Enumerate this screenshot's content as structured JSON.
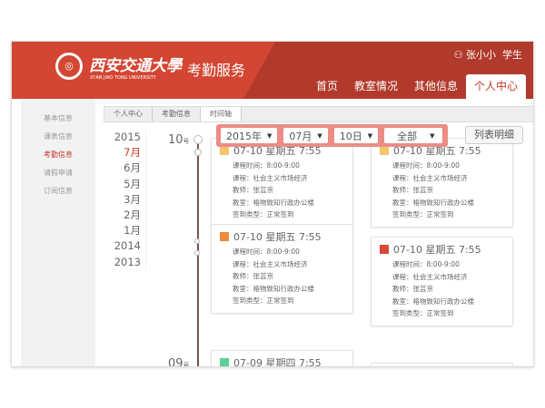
{
  "header": {
    "university_cn": "西安交通大學",
    "university_en": "XI'AN JIAO TONG UNIVERSITY",
    "service": "考勤服务",
    "user": "张小小",
    "role": "学生",
    "user_icon": "user-icon",
    "nav": [
      {
        "label": "首页"
      },
      {
        "label": "教室情况"
      },
      {
        "label": "其他信息"
      },
      {
        "label": "个人中心",
        "active": true
      }
    ]
  },
  "sidebar": {
    "items": [
      {
        "label": "基本信息"
      },
      {
        "label": "课表信息"
      },
      {
        "label": "考勤信息",
        "active": true
      },
      {
        "label": "请假申请"
      },
      {
        "label": "订阅信息"
      }
    ]
  },
  "breadcrumb": [
    "个人中心",
    "考勤信息",
    "时间轴"
  ],
  "years": [
    "2015",
    "7月",
    "6月",
    "5月",
    "3月",
    "2月",
    "1月",
    "2014",
    "2013"
  ],
  "filter": {
    "year": "2015年",
    "month": "07月",
    "day": "10日",
    "type": "全部",
    "list_button": "列表明细"
  },
  "days": [
    {
      "num": "10",
      "suffix": "号"
    },
    {
      "num": "09",
      "suffix": "号"
    }
  ],
  "colors": {
    "brand": "#b23a2c",
    "filter_bg": "#ec8c86",
    "orange": "#f08a3c",
    "red": "#d9493a",
    "green": "#5fcf9a",
    "yellow": "#f3c66a"
  },
  "cards": [
    {
      "title": "07-10 星期五 7:55",
      "icon_color": "#f3c66a",
      "rows": [
        "课程时间：8:00-9:00",
        "课程：社会主义市场经济",
        "教师：张芸京",
        "教室：格物致知行政办公楼",
        "签到类型：正常签到"
      ]
    },
    {
      "title": "07-10 星期五 7:55",
      "icon_color": "#f3c66a",
      "rows": [
        "课程时间：8:00-9:00",
        "课程：社会主义市场经济",
        "教师：张芸京",
        "教室：格物致知行政办公楼",
        "签到类型：正常签到"
      ]
    },
    {
      "title": "07-10 星期五 7:55",
      "icon_color": "#f08a3c",
      "rows": [
        "课程时间：8:00-9:00",
        "课程：社会主义市场经济",
        "教师：张芸京",
        "教室：格物致知行政办公楼",
        "签到类型：正常签到"
      ]
    },
    {
      "title": "07-10 星期五 7:55",
      "icon_color": "#d9493a",
      "rows": [
        "课程时间：8:00-9:00",
        "课程：社会主义市场经济",
        "教师：张芸京",
        "教室：格物致知行政办公楼",
        "签到类型：正常签到"
      ]
    },
    {
      "title": "07-09 星期四 7:55",
      "icon_color": "#5fcf9a",
      "rows": []
    }
  ]
}
